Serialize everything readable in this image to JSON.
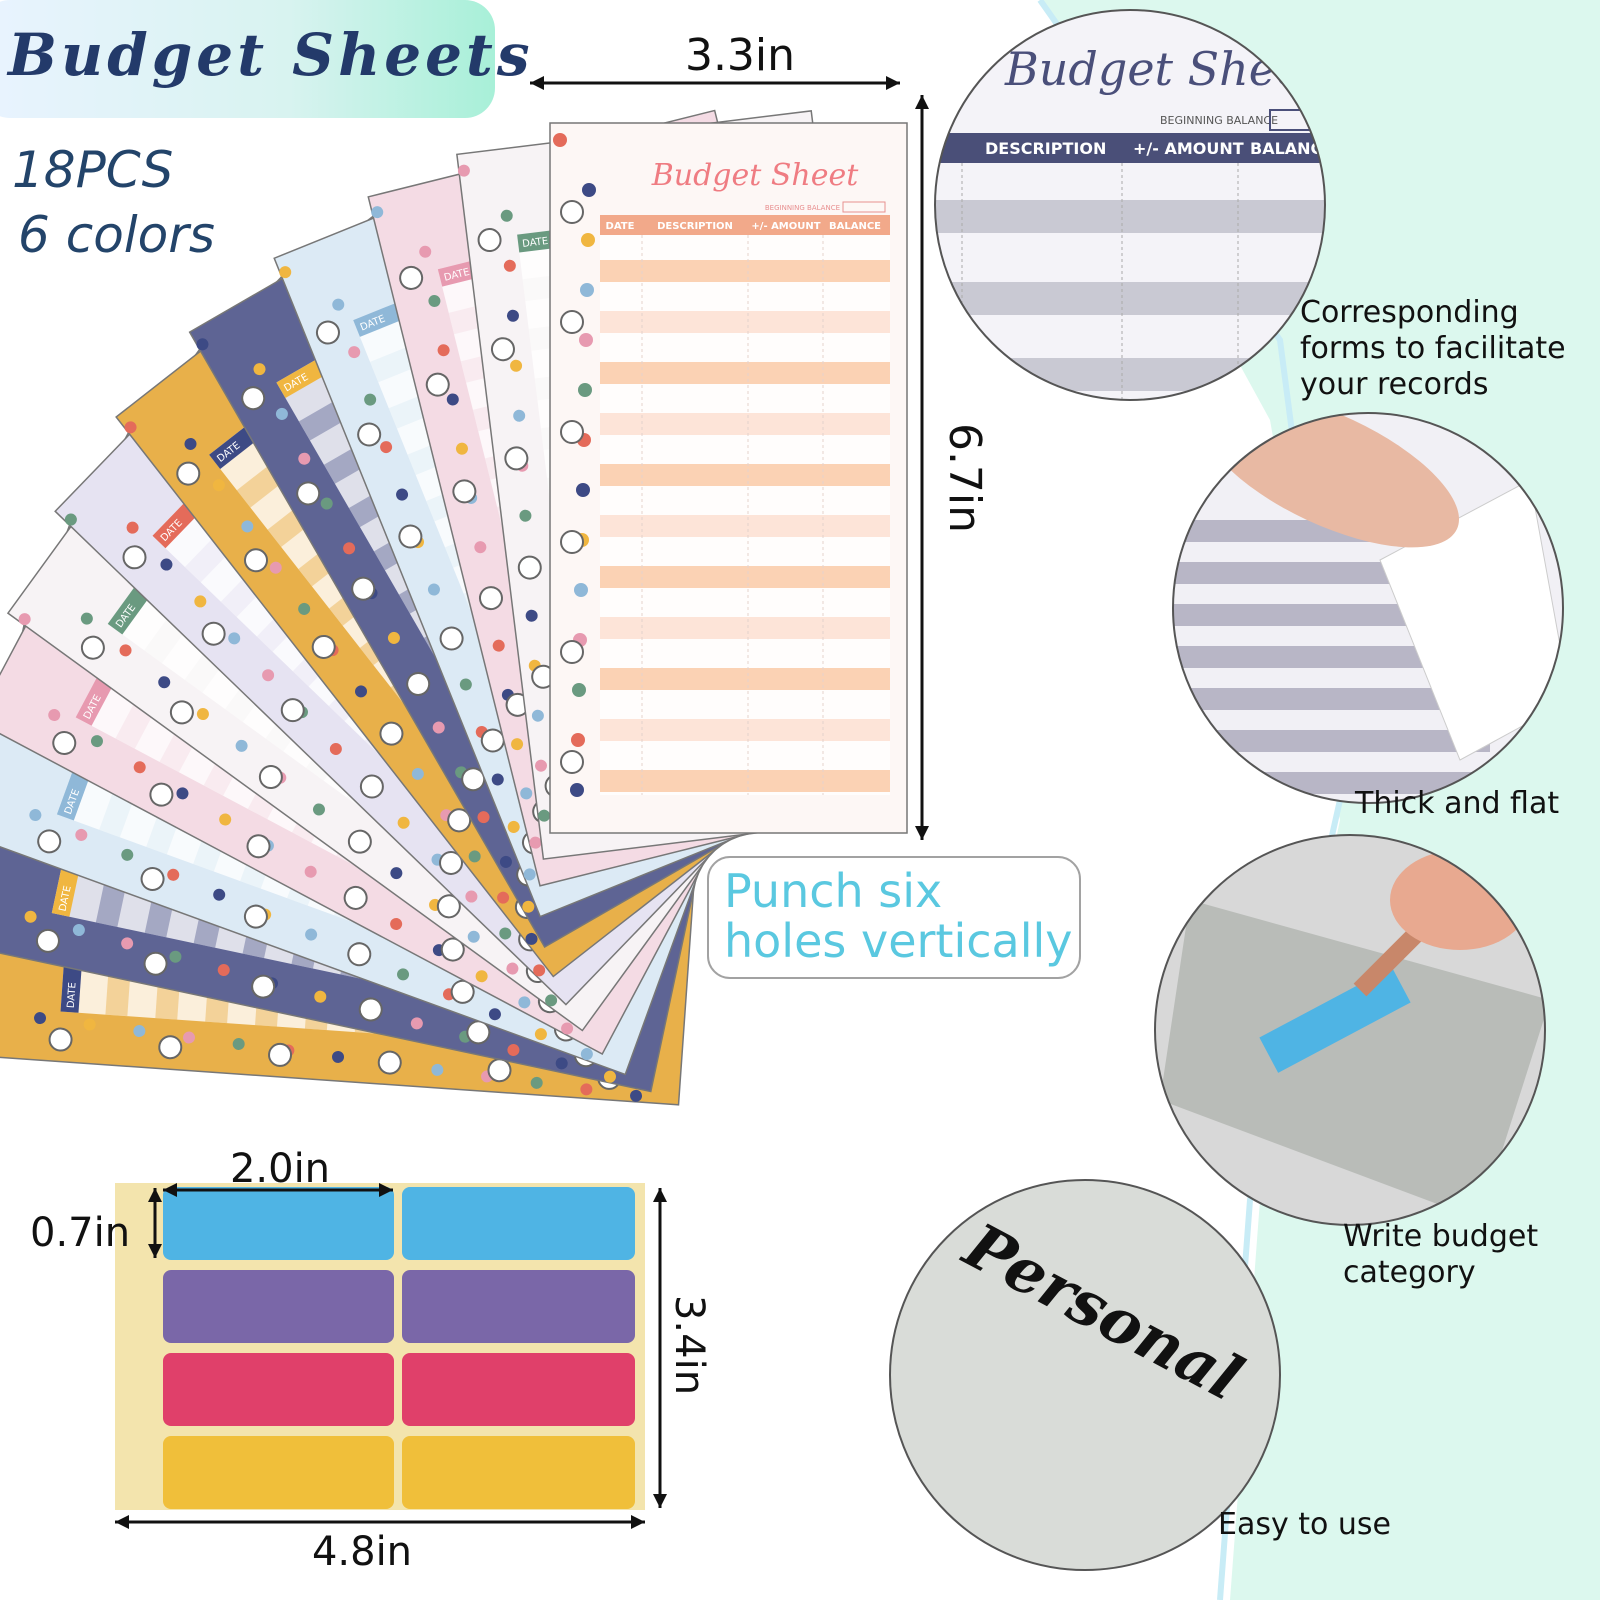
{
  "header": {
    "title": "Budget Sheets",
    "count": "18PCS",
    "colors": "6 colors"
  },
  "sheet": {
    "width": "3.3in",
    "height": "6.7in",
    "title": "Budget Sheet",
    "balance_label": "BEGINNING BALANCE",
    "columns": [
      "DATE",
      "DESCRIPTION",
      "+/- AMOUNT",
      "BALANCE"
    ]
  },
  "punch_note": {
    "lines": [
      "Punch six",
      "holes vertically"
    ]
  },
  "labels": {
    "width": "2.0in",
    "height": "0.7in",
    "sheet_height": "3.4in",
    "sheet_width": "4.8in"
  },
  "features": [
    {
      "lines": [
        "Corresponding",
        "forms to facilitate",
        "your records"
      ],
      "zoom": {
        "title": "Budget Sheet",
        "balance_label": "BEGINNING BALANCE",
        "columns": [
          "DESCRIPTION",
          "+/- AMOUNT",
          "BALANCE"
        ]
      }
    },
    {
      "lines": [
        "Thick and flat"
      ]
    },
    {
      "lines": [
        "Write budget",
        "category"
      ]
    },
    {
      "lines": [
        "Easy to use"
      ],
      "sticker": "Personal"
    }
  ]
}
